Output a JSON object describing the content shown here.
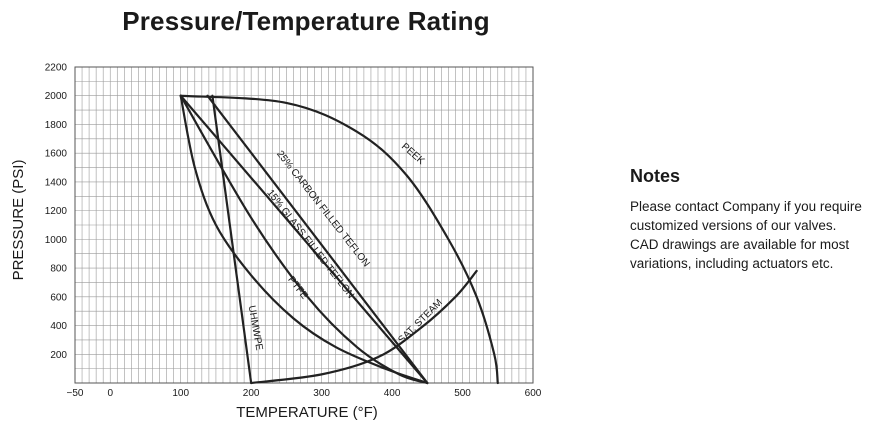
{
  "page": {
    "title": "Pressure/Temperature Rating"
  },
  "notes": {
    "heading": "Notes",
    "lines": [
      "Please contact Company if you require",
      "customized versions of our valves.",
      "CAD drawings are available for most",
      "variations, including actuators etc."
    ]
  },
  "chart_data": {
    "type": "line",
    "title": "Pressure/Temperature Rating",
    "xlabel": "TEMPERATURE (°F)",
    "ylabel": "PRESSURE (PSI)",
    "xlim": [
      -50,
      600
    ],
    "ylim": [
      0,
      2200
    ],
    "x_ticks": [
      -50,
      0,
      100,
      200,
      300,
      400,
      500,
      600
    ],
    "y_ticks": [
      200,
      400,
      600,
      800,
      1000,
      1200,
      1400,
      1600,
      1800,
      2000,
      2200
    ],
    "grid": true,
    "legend": "none",
    "series": [
      {
        "name": "PEEK",
        "points": [
          [
            100,
            2000
          ],
          [
            250,
            1950
          ],
          [
            350,
            1750
          ],
          [
            420,
            1450
          ],
          [
            480,
            1000
          ],
          [
            520,
            600
          ],
          [
            545,
            200
          ],
          [
            550,
            0
          ]
        ]
      },
      {
        "name": "25% CARBON FILLED TEFLON",
        "points": [
          [
            100,
            2000
          ],
          [
            450,
            0
          ]
        ]
      },
      {
        "name": "15% GLASS FILLED TEFLON",
        "points": [
          [
            138,
            2000
          ],
          [
            450,
            0
          ]
        ]
      },
      {
        "name": "PTFE",
        "points": [
          [
            100,
            2000
          ],
          [
            120,
            1500
          ],
          [
            150,
            1100
          ],
          [
            200,
            750
          ],
          [
            260,
            450
          ],
          [
            320,
            250
          ],
          [
            390,
            100
          ],
          [
            450,
            0
          ]
        ]
      },
      {
        "name": "UHMWPE",
        "points": [
          [
            145,
            2000
          ],
          [
            200,
            0
          ]
        ]
      },
      {
        "name": "SAT. STEAM",
        "points": [
          [
            100,
            2000
          ],
          [
            200,
            1150
          ],
          [
            280,
            600
          ],
          [
            350,
            250
          ],
          [
            410,
            60
          ],
          [
            450,
            0
          ]
        ]
      },
      {
        "name": "SAT. STEAM",
        "points": [
          [
            200,
            0
          ],
          [
            300,
            60
          ],
          [
            380,
            180
          ],
          [
            440,
            380
          ],
          [
            490,
            600
          ],
          [
            520,
            780
          ]
        ]
      }
    ],
    "annotations": [
      {
        "text": "PEEK",
        "x": 427,
        "y": 1580,
        "angle": 41
      },
      {
        "text": "25% CARBON FILLED TEFLON",
        "x": 299,
        "y": 1200,
        "angle": 52
      },
      {
        "text": "15% GLASS FILLED TEFLON",
        "x": 281,
        "y": 955,
        "angle": 52
      },
      {
        "text": "PTFE",
        "x": 263,
        "y": 650,
        "angle": 52
      },
      {
        "text": "UHMWPE",
        "x": 202,
        "y": 380,
        "angle": 80
      },
      {
        "text": "SAT. STEAM",
        "x": 443,
        "y": 415,
        "angle": -45
      }
    ]
  }
}
